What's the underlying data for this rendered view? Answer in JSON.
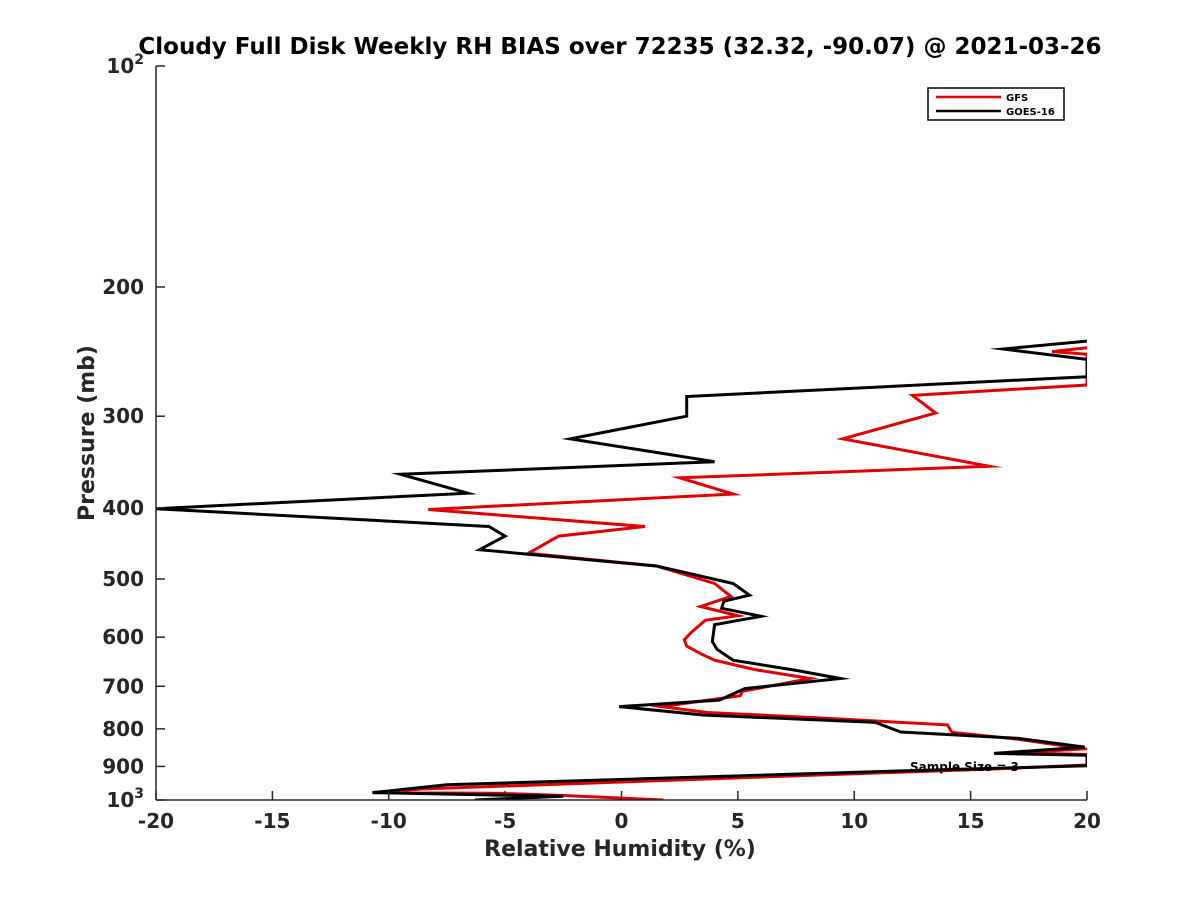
{
  "chart_data": {
    "type": "line",
    "title": "Cloudy Full Disk Weekly RH BIAS over 72235 (32.32, -90.07) @ 2021-03-26",
    "xlabel": "Relative Humidity (%)",
    "ylabel": "Pressure (mb)",
    "xlim": [
      -20,
      20
    ],
    "ylim": [
      100,
      1000
    ],
    "yscale": "log",
    "y_reversed": true,
    "grid": false,
    "legend_position": "top-right",
    "x_ticks": [
      "-20",
      "-15",
      "-10",
      "-5",
      "0",
      "5",
      "10",
      "15",
      "20"
    ],
    "y_ticks": [
      {
        "value": 100,
        "base": "10",
        "exp": "2"
      },
      {
        "value": 200,
        "label": "200"
      },
      {
        "value": 300,
        "label": "300"
      },
      {
        "value": 400,
        "label": "400"
      },
      {
        "value": 500,
        "label": "500"
      },
      {
        "value": 600,
        "label": "600"
      },
      {
        "value": 700,
        "label": "700"
      },
      {
        "value": 800,
        "label": "800"
      },
      {
        "value": 900,
        "label": "900"
      },
      {
        "value": 1000,
        "base": "10",
        "exp": "3"
      }
    ],
    "annotation": "Sample Size = 3",
    "series": [
      {
        "name": "GFS",
        "color": "#e00000",
        "points": [
          [
            20,
            242
          ],
          [
            18.5,
            245
          ],
          [
            20,
            247
          ],
          [
            20,
            272
          ],
          [
            12.5,
            281
          ],
          [
            13.5,
            297
          ],
          [
            9.5,
            322
          ],
          [
            15.8,
            351
          ],
          [
            2.5,
            364
          ],
          [
            4.8,
            383
          ],
          [
            -8.3,
            402
          ],
          [
            1.0,
            424
          ],
          [
            -2.7,
            437
          ],
          [
            -4.0,
            461
          ],
          [
            1.5,
            480
          ],
          [
            4.0,
            507
          ],
          [
            4.7,
            528
          ],
          [
            3.4,
            545
          ],
          [
            5.0,
            561
          ],
          [
            3.6,
            569
          ],
          [
            3.0,
            591
          ],
          [
            2.7,
            605
          ],
          [
            2.8,
            617
          ],
          [
            3.4,
            632
          ],
          [
            4.0,
            645
          ],
          [
            5.7,
            664
          ],
          [
            8.1,
            683
          ],
          [
            5.2,
            711
          ],
          [
            5.1,
            721
          ],
          [
            1.7,
            746
          ],
          [
            3.7,
            760
          ],
          [
            8.5,
            773
          ],
          [
            14.0,
            790
          ],
          [
            14.2,
            809
          ],
          [
            17.0,
            826
          ],
          [
            19.9,
            852
          ],
          [
            17.0,
            862
          ],
          [
            20,
            867
          ],
          [
            20,
            896
          ],
          [
            16.5,
            906
          ],
          [
            -8.6,
            966
          ],
          [
            -10.7,
            977
          ],
          [
            -5.5,
            979
          ],
          [
            -2.5,
            986
          ],
          [
            1.8,
            1000
          ]
        ]
      },
      {
        "name": "GOES-16",
        "color": "#000000",
        "points": [
          [
            20,
            237
          ],
          [
            16.4,
            243
          ],
          [
            20,
            251
          ],
          [
            20,
            265
          ],
          [
            2.8,
            282
          ],
          [
            2.8,
            300
          ],
          [
            -2.2,
            322
          ],
          [
            4.0,
            346
          ],
          [
            -9.5,
            360
          ],
          [
            -6.6,
            382
          ],
          [
            -20,
            401
          ],
          [
            -5.7,
            424
          ],
          [
            -5.0,
            437
          ],
          [
            -6.1,
            456
          ],
          [
            1.5,
            480
          ],
          [
            4.8,
            507
          ],
          [
            5.5,
            526
          ],
          [
            4.4,
            536
          ],
          [
            4.3,
            548
          ],
          [
            6.0,
            562
          ],
          [
            4.0,
            577
          ],
          [
            3.9,
            608
          ],
          [
            4.1,
            623
          ],
          [
            4.8,
            645
          ],
          [
            7.5,
            666
          ],
          [
            9.4,
            683
          ],
          [
            5.3,
            705
          ],
          [
            4.2,
            731
          ],
          [
            -0.1,
            746
          ],
          [
            3.5,
            766
          ],
          [
            10.9,
            784
          ],
          [
            12.0,
            808
          ],
          [
            17.0,
            824
          ],
          [
            19.9,
            847
          ],
          [
            16.0,
            864
          ],
          [
            20,
            869
          ],
          [
            20,
            898
          ],
          [
            12.5,
            912
          ],
          [
            -7.5,
            953
          ],
          [
            -10.7,
            977
          ],
          [
            -5.0,
            985
          ],
          [
            -2.5,
            988
          ],
          [
            -6.3,
            1000
          ]
        ]
      }
    ]
  }
}
